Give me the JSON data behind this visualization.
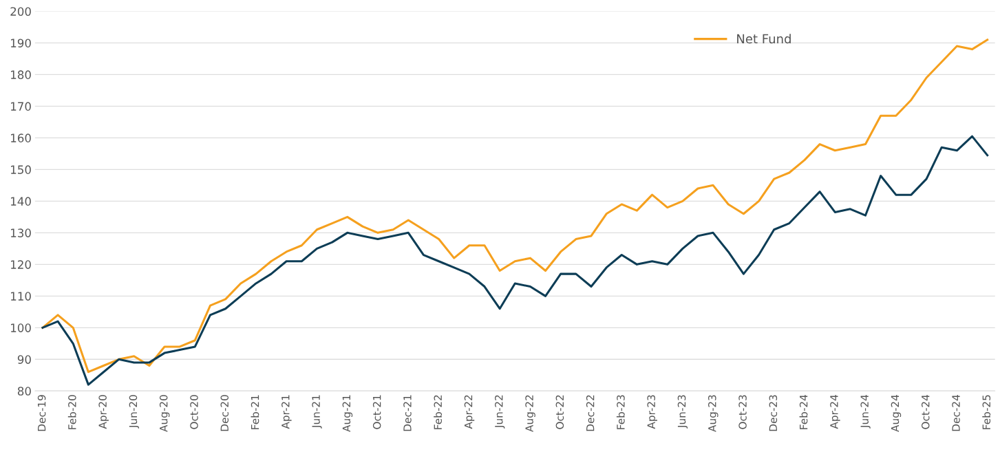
{
  "chart_data": {
    "type": "line",
    "categories": [
      "Dec-19",
      null,
      "Feb-20",
      null,
      "Apr-20",
      null,
      "Jun-20",
      null,
      "Aug-20",
      null,
      "Oct-20",
      null,
      "Dec-20",
      null,
      "Feb-21",
      null,
      "Apr-21",
      null,
      "Jun-21",
      null,
      "Aug-21",
      null,
      "Oct-21",
      null,
      "Dec-21",
      null,
      "Feb-22",
      null,
      "Apr-22",
      null,
      "Jun-22",
      null,
      "Aug-22",
      null,
      "Oct-22",
      null,
      "Dec-22",
      null,
      "Feb-23",
      null,
      "Apr-23",
      null,
      "Jun-23",
      null,
      "Aug-23",
      null,
      "Oct-23",
      null,
      "Dec-23",
      null,
      "Feb-24",
      null,
      "Apr-24",
      null,
      "Jun-24",
      null,
      "Aug-24",
      null,
      "Oct-24",
      null,
      "Dec-24",
      null,
      "Feb-25"
    ],
    "series": [
      {
        "name": "Net Fund",
        "color": "#f5a01e",
        "values": [
          100,
          104,
          100,
          86,
          88,
          90,
          91,
          88,
          94,
          94,
          96,
          107,
          109,
          114,
          117,
          121,
          124,
          126,
          131,
          133,
          135,
          132,
          130,
          131,
          134,
          131,
          128,
          122,
          126,
          126,
          118,
          121,
          122,
          118,
          124,
          128,
          129,
          136,
          139,
          137,
          142,
          138,
          140,
          144,
          145,
          139,
          136,
          140,
          147,
          149,
          153,
          158,
          156,
          157,
          158,
          167,
          167,
          172,
          179,
          184,
          189,
          188,
          191
        ]
      },
      {
        "color": "#0d3d56",
        "values": [
          100,
          102,
          95,
          82,
          86,
          90,
          89,
          89,
          92,
          93,
          94,
          104,
          106,
          110,
          114,
          117,
          121,
          121,
          125,
          127,
          130,
          129,
          128,
          129,
          130,
          123,
          121,
          119,
          117,
          113,
          106,
          114,
          113,
          110,
          117,
          117,
          113,
          119,
          123,
          120,
          121,
          120,
          125,
          129,
          130,
          124,
          117,
          123,
          131,
          133,
          138,
          143,
          136.5,
          137.5,
          135.5,
          148,
          142,
          142,
          147,
          157,
          156,
          160.5,
          154.5
        ]
      }
    ],
    "ylim": [
      80,
      200
    ],
    "yticks": [
      80,
      90,
      100,
      110,
      120,
      130,
      140,
      150,
      160,
      170,
      180,
      190,
      200
    ],
    "grid": "y",
    "legend": "top right",
    "marker": "none",
    "line_style": "solid"
  }
}
